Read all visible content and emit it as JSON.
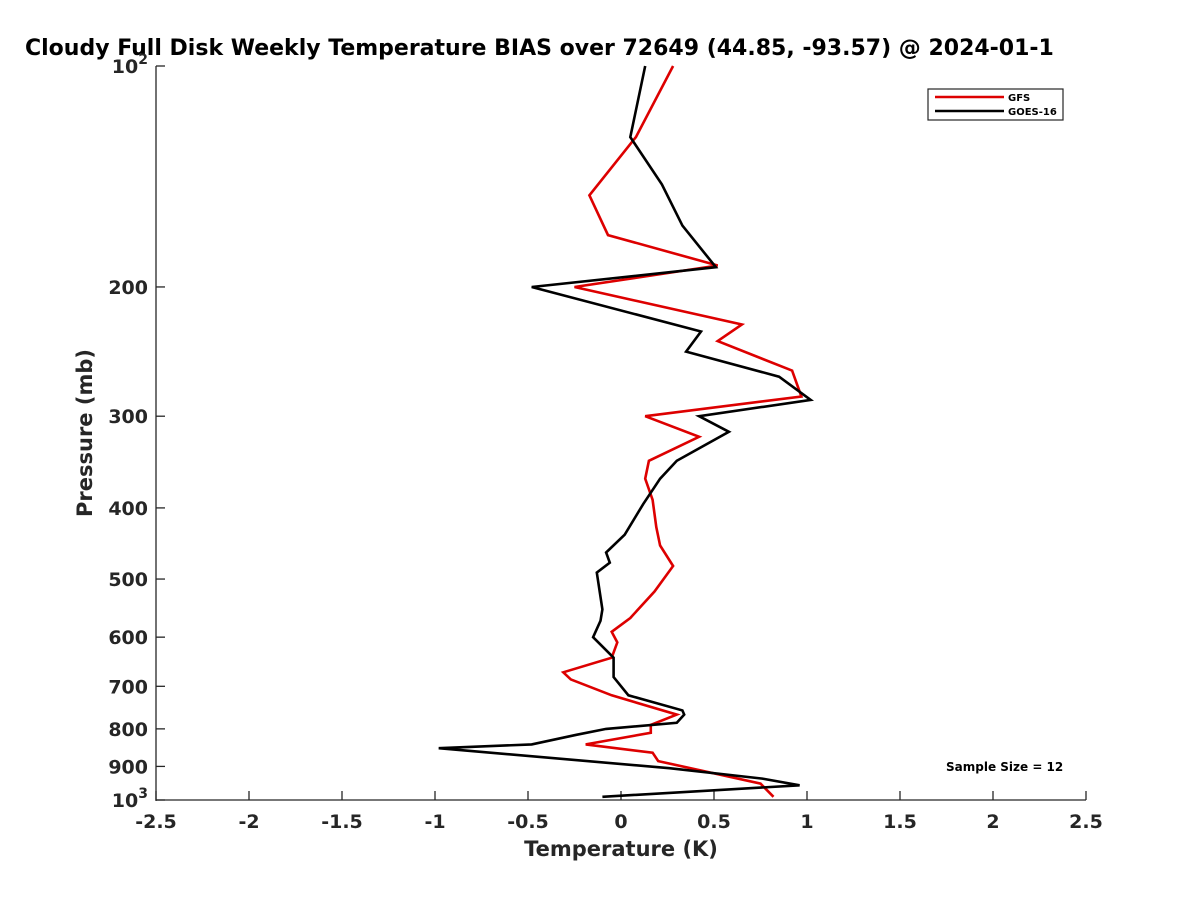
{
  "chart_data": {
    "type": "line",
    "title": "Cloudy Full Disk Weekly Temperature BIAS over 72649 (44.85, -93.57) @ 2024-01-1",
    "xlabel": "Temperature (K)",
    "ylabel": "Pressure (mb)",
    "xlim": [
      -2.5,
      2.5
    ],
    "ylim": [
      100,
      1000
    ],
    "y_scale": "log",
    "y_reversed": true,
    "grid": false,
    "legend_position": "top-right",
    "x_ticks": [
      "-2.5",
      "-2",
      "-1.5",
      "-1",
      "-0.5",
      "0",
      "0.5",
      "1",
      "1.5",
      "2",
      "2.5"
    ],
    "y_ticks": [
      {
        "value": 100,
        "label": "10",
        "sup": "2"
      },
      {
        "value": 200,
        "label": "200",
        "sup": ""
      },
      {
        "value": 300,
        "label": "300",
        "sup": ""
      },
      {
        "value": 400,
        "label": "400",
        "sup": ""
      },
      {
        "value": 500,
        "label": "500",
        "sup": ""
      },
      {
        "value": 600,
        "label": "600",
        "sup": ""
      },
      {
        "value": 700,
        "label": "700",
        "sup": ""
      },
      {
        "value": 800,
        "label": "800",
        "sup": ""
      },
      {
        "value": 900,
        "label": "900",
        "sup": ""
      },
      {
        "value": 1000,
        "label": "10",
        "sup": "3"
      }
    ],
    "annotation": "Sample Size = 12",
    "series": [
      {
        "name": "GFS",
        "color": "#dd0000",
        "points": [
          [
            0.28,
            100
          ],
          [
            0.08,
            125
          ],
          [
            -0.17,
            150
          ],
          [
            -0.07,
            170
          ],
          [
            0.52,
            187
          ],
          [
            -0.25,
            200
          ],
          [
            0.65,
            225
          ],
          [
            0.52,
            237
          ],
          [
            0.92,
            260
          ],
          [
            0.97,
            282
          ],
          [
            0.13,
            300
          ],
          [
            0.42,
            320
          ],
          [
            0.15,
            345
          ],
          [
            0.13,
            365
          ],
          [
            0.17,
            390
          ],
          [
            0.19,
            425
          ],
          [
            0.21,
            450
          ],
          [
            0.28,
            480
          ],
          [
            0.18,
            520
          ],
          [
            0.05,
            565
          ],
          [
            -0.05,
            590
          ],
          [
            -0.02,
            610
          ],
          [
            -0.05,
            640
          ],
          [
            -0.31,
            670
          ],
          [
            -0.27,
            685
          ],
          [
            -0.05,
            720
          ],
          [
            0.3,
            765
          ],
          [
            0.16,
            790
          ],
          [
            0.16,
            810
          ],
          [
            -0.19,
            840
          ],
          [
            0.17,
            862
          ],
          [
            0.2,
            885
          ],
          [
            0.75,
            950
          ],
          [
            0.82,
            990
          ]
        ]
      },
      {
        "name": "GOES-16",
        "color": "#000000",
        "points": [
          [
            0.13,
            100
          ],
          [
            0.05,
            125
          ],
          [
            0.22,
            145
          ],
          [
            0.33,
            165
          ],
          [
            0.51,
            188
          ],
          [
            -0.48,
            200
          ],
          [
            0.43,
            230
          ],
          [
            0.35,
            245
          ],
          [
            0.85,
            265
          ],
          [
            1.02,
            285
          ],
          [
            0.42,
            300
          ],
          [
            0.58,
            315
          ],
          [
            0.3,
            345
          ],
          [
            0.21,
            365
          ],
          [
            0.12,
            395
          ],
          [
            0.02,
            435
          ],
          [
            -0.08,
            460
          ],
          [
            -0.06,
            475
          ],
          [
            -0.13,
            490
          ],
          [
            -0.1,
            550
          ],
          [
            -0.11,
            570
          ],
          [
            -0.15,
            600
          ],
          [
            -0.04,
            640
          ],
          [
            -0.04,
            680
          ],
          [
            0.04,
            720
          ],
          [
            0.33,
            755
          ],
          [
            0.34,
            765
          ],
          [
            0.3,
            785
          ],
          [
            -0.08,
            800
          ],
          [
            -0.24,
            815
          ],
          [
            -0.48,
            840
          ],
          [
            -0.98,
            850
          ],
          [
            0.26,
            905
          ],
          [
            0.76,
            935
          ],
          [
            0.96,
            955
          ],
          [
            0.5,
            970
          ],
          [
            -0.1,
            990
          ]
        ]
      }
    ]
  }
}
